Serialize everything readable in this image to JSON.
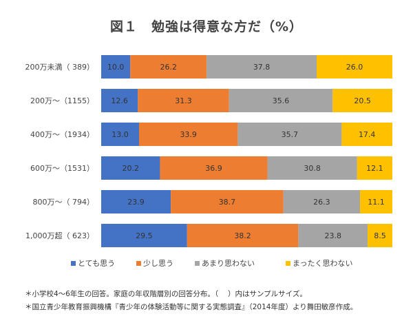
{
  "chart_data": {
    "type": "bar",
    "orientation": "horizontal",
    "stacked": true,
    "title": "図１　勉強は得意な方だ（%）",
    "categories": [
      "200万未満（ 389）",
      "200万～（1155）",
      "400万～（1934）",
      "600万～（1531）",
      "800万～（ 794）",
      "1,000万超（ 623）"
    ],
    "series": [
      {
        "name": "とても思う",
        "color": "#4472C4",
        "values": [
          10.0,
          12.6,
          13.0,
          20.2,
          23.9,
          29.5
        ]
      },
      {
        "name": "少し思う",
        "color": "#ED7D31",
        "values": [
          26.2,
          31.3,
          33.9,
          36.9,
          38.7,
          38.2
        ]
      },
      {
        "name": "あまり思わない",
        "color": "#A5A5A5",
        "values": [
          37.8,
          35.6,
          35.7,
          30.8,
          26.3,
          23.8
        ]
      },
      {
        "name": "まったく思わない",
        "color": "#FFC000",
        "values": [
          26.0,
          20.5,
          17.4,
          12.1,
          11.1,
          8.5
        ]
      }
    ],
    "xlim": [
      0,
      100
    ],
    "grid": false,
    "legend_position": "bottom"
  },
  "notes": [
    "＊小学校4～6年生の回答。家庭の年収階層別の回答分布。（　 ）内はサンプルサイズ。",
    "＊国立青少年教育振興機構『青少年の体験活動等に関する実態調査』（2014年度）より舞田敏彦作成。"
  ]
}
